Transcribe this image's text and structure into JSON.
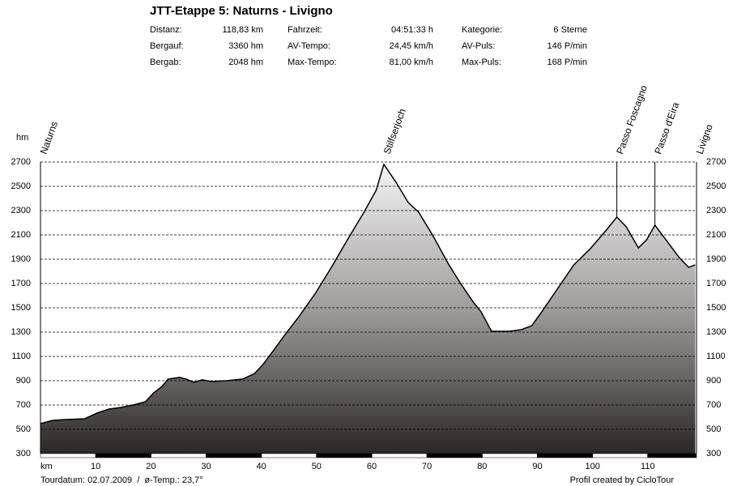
{
  "chart_data": {
    "type": "area",
    "title": "JTT-Etappe 5: Naturns - Livigno",
    "stats": [
      [
        "Distanz:",
        "118,83 km",
        "Fahrzeit:",
        "04:51:33 h",
        "Kategorie:",
        "6 Sterne"
      ],
      [
        "Bergauf:",
        "3360 hm",
        "AV-Tempo:",
        "24,45 km/h",
        "AV-Puls:",
        "146 P/min"
      ],
      [
        "Bergab:",
        "2048 hm",
        "Max-Tempo:",
        "81,00 km/h",
        "Max-Puls:",
        "168 P/min"
      ]
    ],
    "y_label": "hm",
    "x_label": "km",
    "x": [
      0,
      2.2,
      4.4,
      8,
      10.2,
      12.4,
      14.6,
      16.8,
      19,
      20.5,
      22,
      23.1,
      25.2,
      26.4,
      27.8,
      29.3,
      31,
      33.7,
      36.6,
      38.8,
      40.3,
      42.5,
      44.2,
      46.9,
      49.8,
      52.7,
      55.6,
      58.6,
      60.8,
      62.2,
      64.4,
      66.6,
      68.5,
      71,
      73.9,
      76.1,
      78.3,
      79.8,
      81.7,
      84.9,
      87.1,
      89,
      90.8,
      93.7,
      96.6,
      99.6,
      102.5,
      104.4,
      106.1,
      108.3,
      109.8,
      111.3,
      113.5,
      115.7,
      117.4,
      118.6
    ],
    "values": [
      547,
      573,
      580,
      587,
      633,
      667,
      680,
      700,
      727,
      800,
      853,
      913,
      927,
      913,
      887,
      907,
      893,
      900,
      913,
      960,
      1033,
      1167,
      1273,
      1433,
      1620,
      1833,
      2060,
      2287,
      2467,
      2680,
      2533,
      2367,
      2287,
      2100,
      1860,
      1700,
      1553,
      1467,
      1307,
      1307,
      1320,
      1353,
      1467,
      1660,
      1853,
      1987,
      2140,
      2247,
      2167,
      1993,
      2060,
      2180,
      2047,
      1913,
      1833,
      1853
    ],
    "xlim": [
      0,
      118.83
    ],
    "xticks": [
      10,
      20,
      30,
      40,
      50,
      60,
      70,
      80,
      90,
      100,
      110
    ],
    "ylim": [
      300,
      2700
    ],
    "yticks": [
      300,
      500,
      700,
      900,
      1100,
      1300,
      1500,
      1700,
      1900,
      2100,
      2300,
      2500,
      2700
    ],
    "grid": true,
    "annotations": [
      {
        "text": "Naturns",
        "x": 0
      },
      {
        "text": "Stilfserjoch",
        "x": 62.2
      },
      {
        "text": "Passo Foscagno",
        "x": 104.4,
        "line": true
      },
      {
        "text": "Passo d'Eira",
        "x": 111.3,
        "line": true
      },
      {
        "text": "Livigno",
        "x": 118.83
      }
    ],
    "footer_left": "Tourdatum: 02.07.2009  /  ø-Temp.: 23,7°",
    "footer_right": "Profil created by CicloTour"
  }
}
